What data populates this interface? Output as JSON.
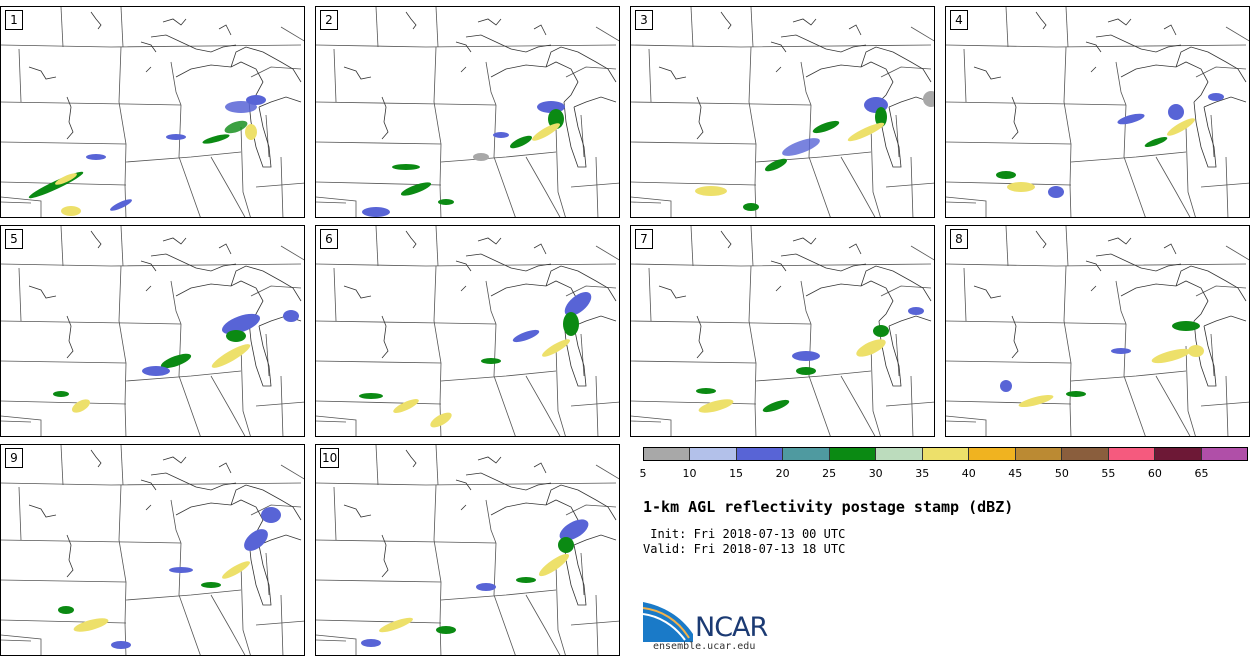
{
  "panels": [
    "1",
    "2",
    "3",
    "4",
    "5",
    "6",
    "7",
    "8",
    "9",
    "10"
  ],
  "colorbar": {
    "labels": [
      "5",
      "10",
      "15",
      "20",
      "25",
      "30",
      "35",
      "40",
      "45",
      "50",
      "55",
      "60",
      "65"
    ],
    "colors": [
      "#a8a8a8",
      "#b3c1ea",
      "#5864d6",
      "#4f9aa0",
      "#0b8a13",
      "#bcdcbd",
      "#ede06a",
      "#f0b320",
      "#bb8a33",
      "#8a5e3d",
      "#f55a7e",
      "#6d1836",
      "#b04fa8"
    ]
  },
  "title": "1-km AGL reflectivity postage stamp (dBZ)",
  "init": " Init: Fri 2018-07-13 00 UTC",
  "valid": "Valid: Fri 2018-07-13 18 UTC",
  "logo": {
    "name": "NCAR",
    "url": "ensemble.ucar.edu"
  }
}
